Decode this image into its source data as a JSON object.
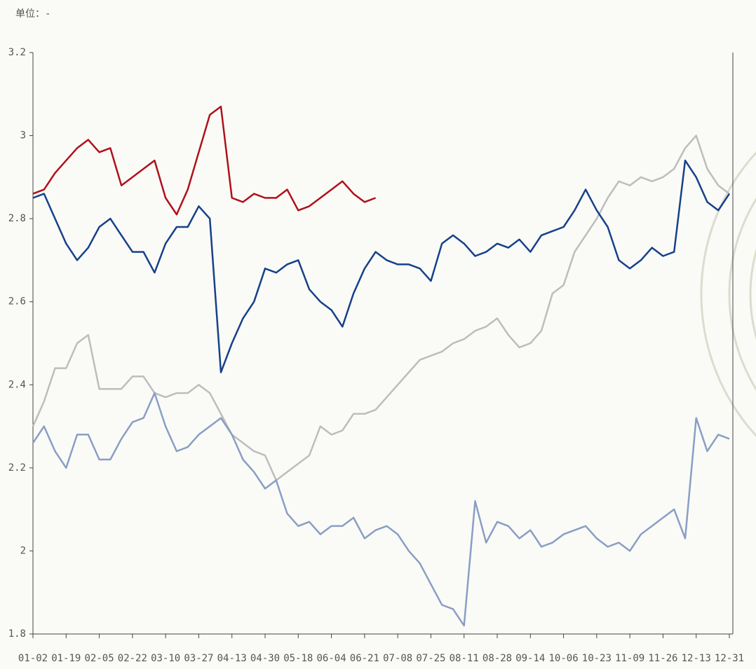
{
  "chart_data": {
    "type": "line",
    "subtitle": "单位：-",
    "categories": [
      "01-02",
      null,
      null,
      "01-19",
      null,
      null,
      "02-05",
      null,
      null,
      "02-22",
      null,
      null,
      "03-10",
      null,
      null,
      "03-27",
      null,
      null,
      "04-13",
      null,
      null,
      "04-30",
      null,
      null,
      "05-18",
      null,
      null,
      "06-04",
      null,
      null,
      "06-21",
      null,
      null,
      "07-08",
      null,
      null,
      "07-25",
      null,
      null,
      "08-11",
      null,
      null,
      "08-28",
      null,
      null,
      "09-14",
      null,
      null,
      "10-06",
      null,
      null,
      "10-23",
      null,
      null,
      "11-09",
      null,
      null,
      "11-26",
      null,
      null,
      "12-13",
      null,
      null,
      "12-31"
    ],
    "series": [
      {
        "color": "#bdbdbd",
        "values": [
          2.3,
          2.36,
          2.44,
          2.44,
          2.5,
          2.52,
          2.39,
          2.39,
          2.39,
          2.42,
          2.42,
          2.38,
          2.37,
          2.38,
          2.38,
          2.4,
          2.38,
          2.33,
          2.28,
          2.26,
          2.24,
          2.23,
          2.17,
          2.19,
          2.21,
          2.23,
          2.3,
          2.28,
          2.29,
          2.33,
          2.33,
          2.34,
          2.37,
          2.4,
          2.43,
          2.46,
          2.47,
          2.48,
          2.5,
          2.51,
          2.53,
          2.54,
          2.56,
          2.52,
          2.49,
          2.5,
          2.53,
          2.62,
          2.64,
          2.72,
          2.76,
          2.8,
          2.85,
          2.89,
          2.88,
          2.9,
          2.89,
          2.9,
          2.92,
          2.97,
          3.0,
          2.92,
          2.88,
          2.86
        ]
      },
      {
        "color": "#8a9ec4",
        "values": [
          2.26,
          2.3,
          2.24,
          2.2,
          2.28,
          2.28,
          2.22,
          2.22,
          2.27,
          2.31,
          2.32,
          2.38,
          2.3,
          2.24,
          2.25,
          2.28,
          2.3,
          2.32,
          2.28,
          2.22,
          2.19,
          2.15,
          2.17,
          2.09,
          2.06,
          2.07,
          2.04,
          2.06,
          2.06,
          2.08,
          2.03,
          2.05,
          2.06,
          2.04,
          2.0,
          1.97,
          1.92,
          1.87,
          1.86,
          1.82,
          2.12,
          2.02,
          2.07,
          2.06,
          2.03,
          2.05,
          2.01,
          2.02,
          2.04,
          2.05,
          2.06,
          2.03,
          2.01,
          2.02,
          2.0,
          2.04,
          2.06,
          2.08,
          2.1,
          2.03,
          2.32,
          2.24,
          2.28,
          2.27
        ]
      },
      {
        "color": "#17408b",
        "values": [
          2.85,
          2.86,
          2.8,
          2.74,
          2.7,
          2.73,
          2.78,
          2.8,
          2.76,
          2.72,
          2.72,
          2.67,
          2.74,
          2.78,
          2.78,
          2.83,
          2.8,
          2.43,
          2.5,
          2.56,
          2.6,
          2.68,
          2.67,
          2.69,
          2.7,
          2.63,
          2.6,
          2.58,
          2.54,
          2.62,
          2.68,
          2.72,
          2.7,
          2.69,
          2.69,
          2.68,
          2.65,
          2.74,
          2.76,
          2.74,
          2.71,
          2.72,
          2.74,
          2.73,
          2.75,
          2.72,
          2.76,
          2.77,
          2.78,
          2.82,
          2.87,
          2.82,
          2.78,
          2.7,
          2.68,
          2.7,
          2.73,
          2.71,
          2.72,
          2.94,
          2.9,
          2.84,
          2.82,
          2.86
        ]
      },
      {
        "color": "#b0101a",
        "values": [
          2.86,
          2.87,
          2.91,
          2.94,
          2.97,
          2.99,
          2.96,
          2.97,
          2.88,
          2.9,
          2.92,
          2.94,
          2.85,
          2.81,
          2.87,
          2.96,
          3.05,
          3.07,
          2.85,
          2.84,
          2.86,
          2.85,
          2.85,
          2.87,
          2.82,
          2.83,
          2.85,
          2.87,
          2.89,
          2.86,
          2.84,
          2.85,
          null,
          null,
          null,
          null,
          null,
          null,
          null,
          null,
          null,
          null,
          null,
          null,
          null,
          null,
          null,
          null,
          null,
          null,
          null,
          null,
          null,
          null,
          null,
          null,
          null,
          null,
          null,
          null,
          null,
          null,
          null,
          null
        ]
      }
    ],
    "ylim": [
      1.8,
      3.2
    ],
    "yticks": [
      1.8,
      2,
      2.2,
      2.4,
      2.6,
      2.8,
      3,
      3.2
    ]
  }
}
